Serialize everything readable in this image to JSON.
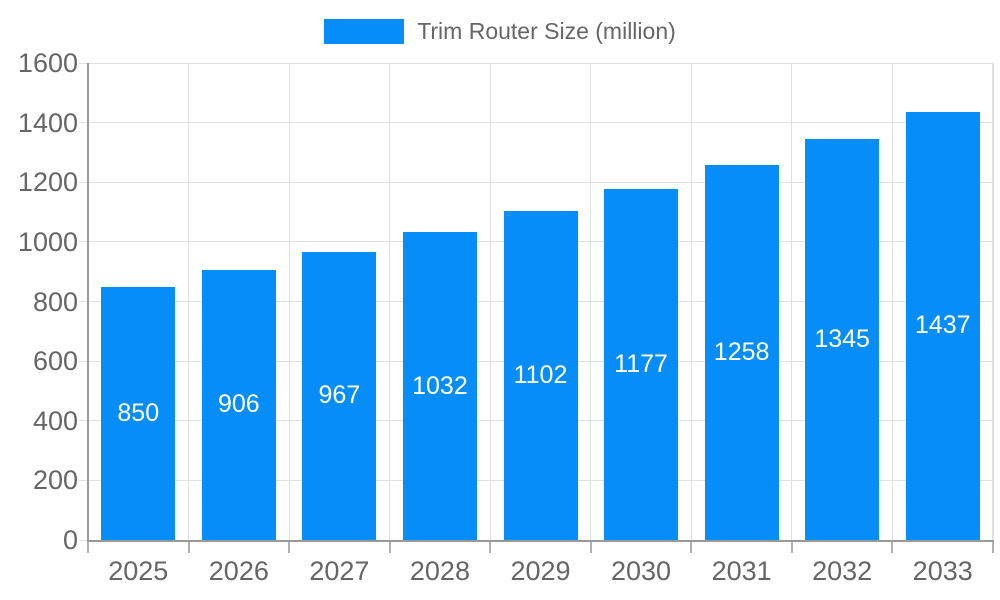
{
  "legend": {
    "label": "Trim Router Size (million)"
  },
  "chart_data": {
    "type": "bar",
    "title": "Trim Router Size (million)",
    "categories": [
      "2025",
      "2026",
      "2027",
      "2028",
      "2029",
      "2030",
      "2031",
      "2032",
      "2033"
    ],
    "values": [
      850,
      906,
      967,
      1032,
      1102,
      1177,
      1258,
      1345,
      1437
    ],
    "xlabel": "",
    "ylabel": "",
    "ylim": [
      0,
      1600
    ],
    "ytick_step": 200,
    "legend_position": "top-center",
    "grid": true,
    "bar_labels_position": "inside-center",
    "colors": {
      "bar": "#068df7",
      "grid": "#e0e0e0",
      "axis": "#999999",
      "tick": "#b0b0b0",
      "text": "#666666",
      "bar_label": "#ffffff"
    }
  }
}
